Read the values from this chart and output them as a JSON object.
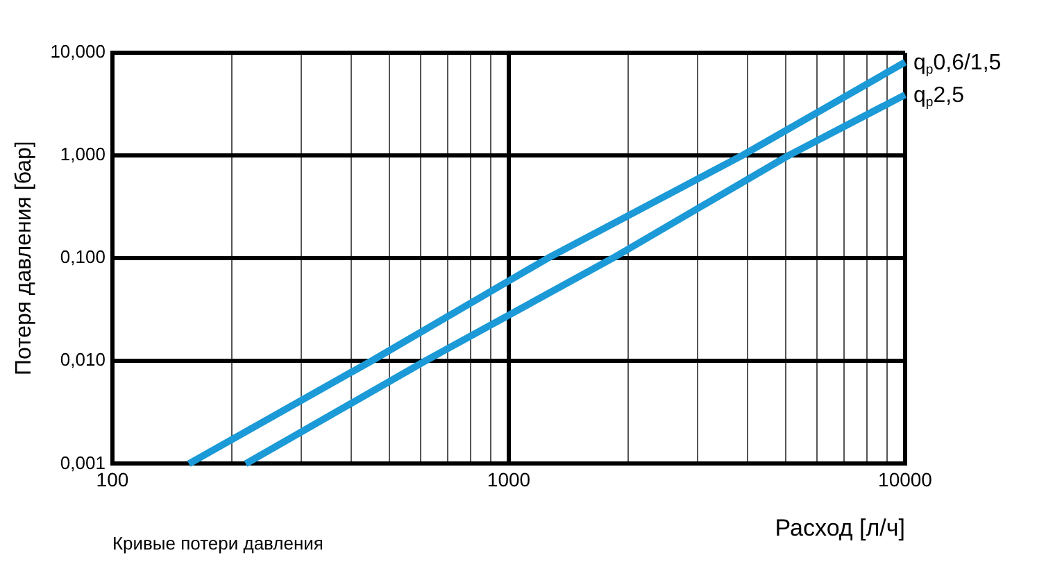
{
  "chart_data": {
    "type": "line",
    "xlabel": "Расход [л/ч]",
    "ylabel": "Потеря давления [бар]",
    "annotations": [
      "Кривые потери давления"
    ],
    "log": "xy",
    "grid": true,
    "legend": false,
    "marker": "none",
    "line_style": "solid",
    "xlim": [
      100,
      10000
    ],
    "ylim": [
      0.001,
      10
    ],
    "xticks": [
      100,
      {
        "value": 200,
        "label": null
      },
      {
        "value": 300,
        "label": null
      },
      {
        "value": 400,
        "label": null
      },
      {
        "value": 500,
        "label": null
      },
      {
        "value": 600,
        "label": null
      },
      {
        "value": 700,
        "label": null
      },
      {
        "value": 800,
        "label": null
      },
      {
        "value": 900,
        "label": null
      },
      1000,
      {
        "value": 2000,
        "label": null
      },
      {
        "value": 3000,
        "label": null
      },
      {
        "value": 4000,
        "label": null
      },
      {
        "value": 5000,
        "label": null
      },
      {
        "value": 6000,
        "label": null
      },
      {
        "value": 7000,
        "label": null
      },
      {
        "value": 8000,
        "label": null
      },
      {
        "value": 9000,
        "label": null
      },
      10000
    ],
    "yticks": [
      {
        "value": 0.001,
        "label": "0,001"
      },
      {
        "value": 0.01,
        "label": "0,010"
      },
      {
        "value": 0.1,
        "label": "0,100"
      },
      {
        "value": 1,
        "label": "1,000"
      },
      {
        "value": 10,
        "label": "10,000"
      }
    ],
    "series": [
      {
        "name": "q$_{p}$0,6/1,5",
        "color": "#1b9ad7",
        "x": [
          156,
          450,
          1254,
          3880,
          10000
        ],
        "values": [
          0.001,
          0.01,
          0.1,
          1,
          8.1
        ]
      },
      {
        "name": "q$_{p}$2,5",
        "color": "#1b9ad7",
        "x": [
          217,
          615,
          1828,
          5080,
          10000
        ],
        "values": [
          0.001,
          0.01,
          0.1,
          1,
          3.9
        ]
      }
    ]
  }
}
